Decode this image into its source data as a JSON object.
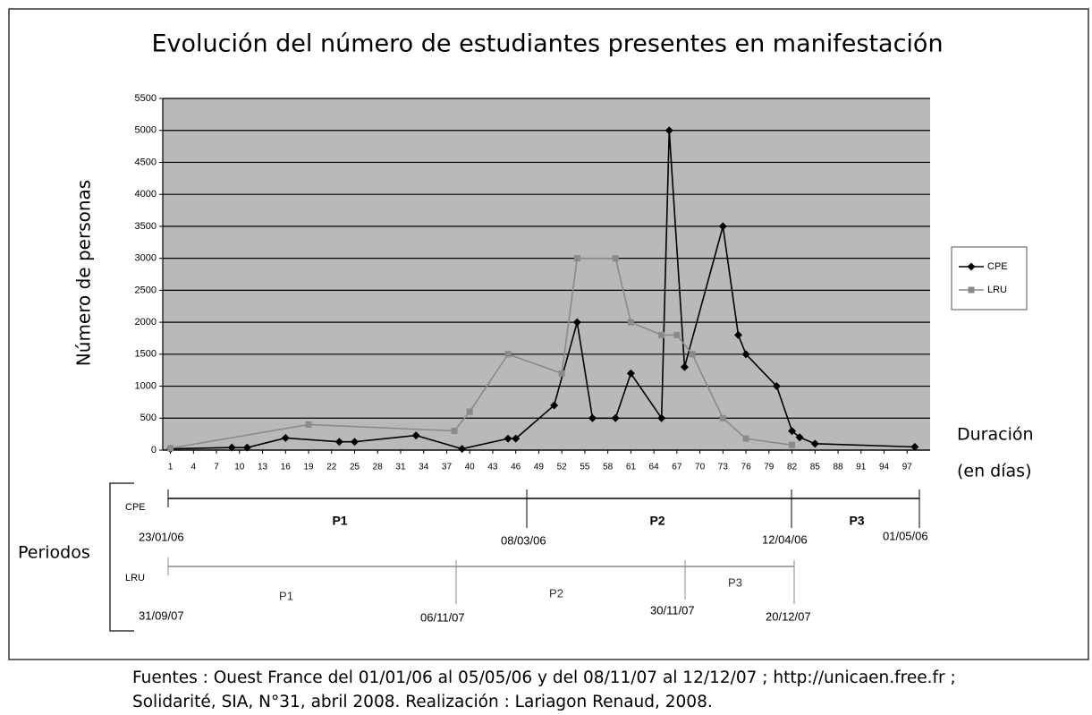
{
  "chart_data": {
    "type": "line",
    "title": "Evolución del número de estudiantes presentes en manifestación",
    "ylabel": "Número de personas",
    "xlabel_lines": [
      "Duración",
      "(en días)"
    ],
    "xlim": [
      0,
      100
    ],
    "xticks": [
      1,
      4,
      7,
      10,
      13,
      16,
      19,
      22,
      25,
      28,
      31,
      34,
      37,
      40,
      43,
      46,
      49,
      52,
      55,
      58,
      61,
      64,
      67,
      70,
      73,
      76,
      79,
      82,
      85,
      88,
      91,
      94,
      97
    ],
    "ylim": [
      0,
      5500
    ],
    "yticks": [
      0,
      500,
      1000,
      1500,
      2000,
      2500,
      3000,
      3500,
      4000,
      4500,
      5000,
      5500
    ],
    "grid": true,
    "legend": "right",
    "series": [
      {
        "name": "CPE",
        "color": "#000000",
        "marker": "diamond",
        "x": [
          1,
          9,
          11,
          16,
          23,
          25,
          33,
          39,
          45,
          46,
          51,
          54,
          56,
          59,
          61,
          65,
          66,
          68,
          73,
          75,
          76,
          80,
          82,
          83,
          85,
          98
        ],
        "values": [
          20,
          40,
          40,
          190,
          130,
          130,
          230,
          20,
          180,
          180,
          700,
          2000,
          500,
          500,
          1200,
          500,
          5000,
          1300,
          3500,
          1800,
          1500,
          1000,
          300,
          200,
          100,
          50
        ]
      },
      {
        "name": "LRU",
        "color": "#8a8a8a",
        "marker": "square",
        "x": [
          1,
          19,
          38,
          40,
          45,
          52,
          54,
          59,
          61,
          65,
          67,
          69,
          73,
          76,
          82
        ],
        "values": [
          30,
          400,
          300,
          600,
          1500,
          1200,
          3000,
          3000,
          2000,
          1800,
          1800,
          1500,
          500,
          180,
          80
        ]
      }
    ]
  },
  "periods": {
    "label": "Periodos",
    "timelines": [
      {
        "name": "CPE",
        "periods": [
          "P1",
          "P2",
          "P3"
        ],
        "dates": [
          "23/01/06",
          "08/03/06",
          "12/04/06",
          "01/05/06"
        ]
      },
      {
        "name": "LRU",
        "periods": [
          "P1",
          "P2",
          "P3"
        ],
        "dates": [
          "31/09/07",
          "06/11/07",
          "30/11/07",
          "20/12/07"
        ]
      }
    ]
  },
  "source": [
    "Fuentes : Ouest France del 01/01/06 al 05/05/06 y del 08/11/07 al 12/12/07 ; http://unicaen.free.fr ;",
    "Solidarité, SIA, N°31, abril 2008. Realización : Lariagon Renaud, 2008."
  ]
}
